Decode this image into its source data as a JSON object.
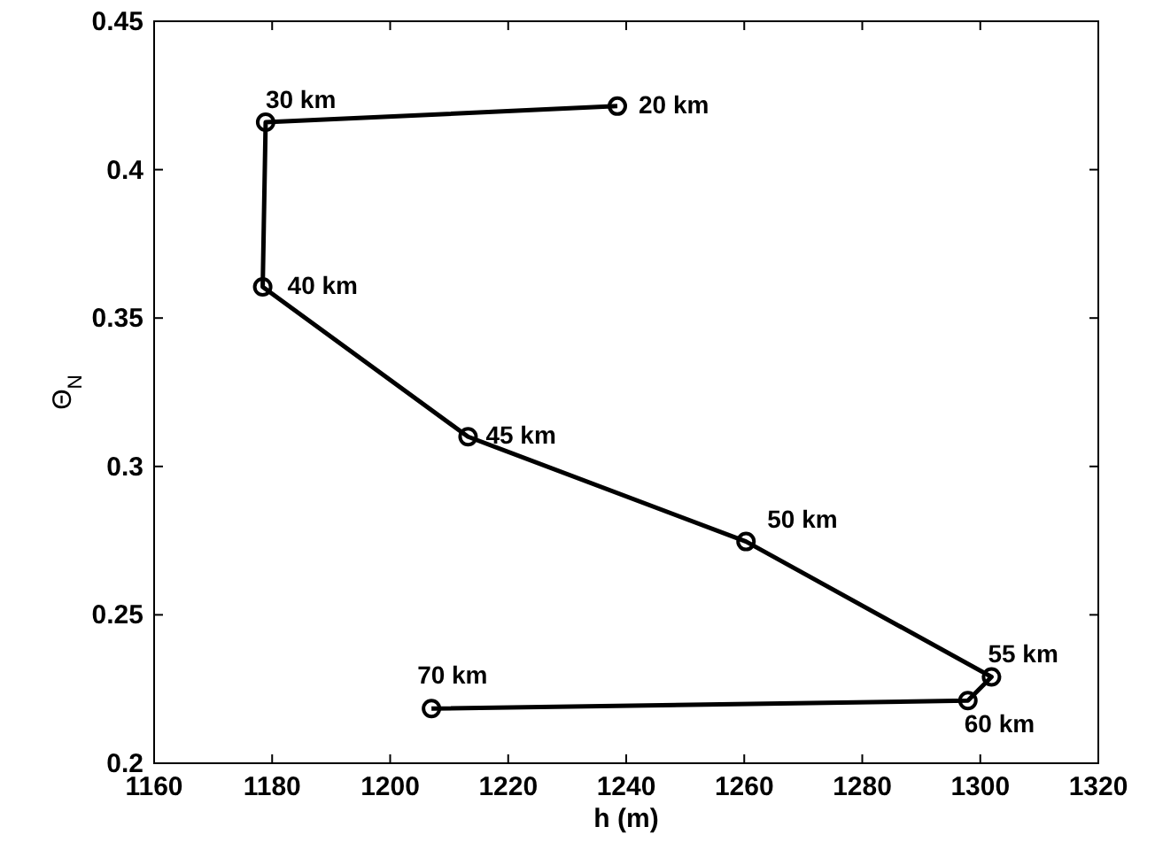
{
  "chart_data": {
    "type": "line",
    "xlabel": "h  (m)",
    "ylabel": "Θ$_{N}$",
    "x": [
      1238.5,
      1178.9,
      1178.4,
      1213.2,
      1260.3,
      1301.9,
      1297.9,
      1207
    ],
    "series": [
      {
        "color": "#000000",
        "values": [
          0.4214,
          0.416,
          0.3605,
          0.31,
          0.2747,
          0.2291,
          0.2211,
          0.2184
        ]
      }
    ],
    "marker": "circle",
    "line_style": "solid",
    "xlim": [
      1160,
      1320
    ],
    "xticks": [
      1160,
      1180,
      1200,
      1220,
      1240,
      1260,
      1280,
      1300,
      1320
    ],
    "ylim": [
      0.2,
      0.45
    ],
    "yticks": [
      0.2,
      0.25,
      0.3,
      0.35,
      0.4,
      0.45
    ],
    "annotations": [
      {
        "text": "20 km",
        "x": 1238.5,
        "y": 0.4214
      },
      {
        "text": "30 km",
        "x": 1178.9,
        "y": 0.416
      },
      {
        "text": "40 km",
        "x": 1178.4,
        "y": 0.3605
      },
      {
        "text": "45 km",
        "x": 1213.2,
        "y": 0.31
      },
      {
        "text": "50 km",
        "x": 1260.3,
        "y": 0.2747
      },
      {
        "text": "55 km",
        "x": 1301.9,
        "y": 0.2291
      },
      {
        "text": "60 km",
        "x": 1297.9,
        "y": 0.2211
      },
      {
        "text": "70 km",
        "x": 1207,
        "y": 0.2184
      }
    ]
  }
}
